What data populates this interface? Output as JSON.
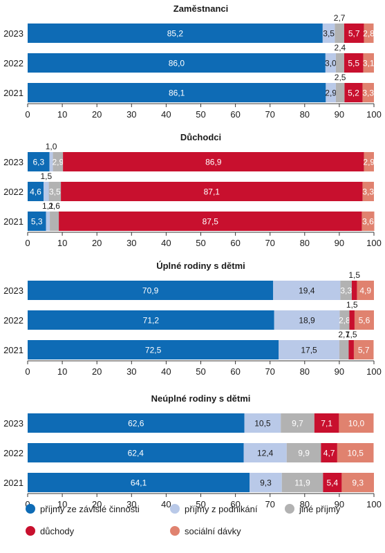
{
  "chart_data": {
    "type": "bar",
    "orientation": "horizontal",
    "stacked": true,
    "xlim": [
      0,
      100
    ],
    "xticks": [
      "0",
      "10",
      "20",
      "30",
      "40",
      "50",
      "60",
      "70",
      "80",
      "90",
      "100"
    ],
    "legend": {
      "placement": "bottom",
      "entries": [
        {
          "name": "příjmy ze závislé činnosti",
          "color": "#0e6bb5"
        },
        {
          "name": "příjmy z podnikání",
          "color": "#b9c9e8"
        },
        {
          "name": "jiné příjmy",
          "color": "#b2b2b2"
        },
        {
          "name": "důchody",
          "color": "#c8102e"
        },
        {
          "name": "sociální dávky",
          "color": "#e0826f"
        }
      ]
    },
    "panels": [
      {
        "title": "Zaměstnanci",
        "rows": [
          {
            "year": "2023",
            "values": [
              85.2,
              3.5,
              2.7,
              5.7,
              2.8
            ],
            "labels": [
              "85,2",
              "3,5",
              "2,7",
              "5,7",
              "2,8"
            ]
          },
          {
            "year": "2022",
            "values": [
              86.0,
              3.0,
              2.4,
              5.5,
              3.1
            ],
            "labels": [
              "86,0",
              "3,0",
              "2,4",
              "5,5",
              "3,1"
            ]
          },
          {
            "year": "2021",
            "values": [
              86.1,
              2.9,
              2.5,
              5.2,
              3.3
            ],
            "labels": [
              "86,1",
              "2,9",
              "2,5",
              "5,2",
              "3,3"
            ]
          }
        ]
      },
      {
        "title": "Důchodci",
        "rows": [
          {
            "year": "2023",
            "values": [
              6.3,
              1.0,
              2.9,
              86.9,
              2.9
            ],
            "labels": [
              "6,3",
              "1,0",
              "2,9",
              "86,9",
              "2,9"
            ]
          },
          {
            "year": "2022",
            "values": [
              4.6,
              1.5,
              3.5,
              87.1,
              3.3
            ],
            "labels": [
              "4,6",
              "1,5",
              "3,5",
              "87,1",
              "3,3"
            ]
          },
          {
            "year": "2021",
            "values": [
              5.3,
              1.1,
              2.6,
              87.5,
              3.6
            ],
            "labels": [
              "5,3",
              "1,1",
              "2,6",
              "87,5",
              "3,6"
            ]
          }
        ]
      },
      {
        "title": "Úplné rodiny s dětmi",
        "rows": [
          {
            "year": "2023",
            "values": [
              70.9,
              19.4,
              3.3,
              1.5,
              4.9
            ],
            "labels": [
              "70,9",
              "19,4",
              "3,3",
              "1,5",
              "4,9"
            ]
          },
          {
            "year": "2022",
            "values": [
              71.2,
              18.9,
              2.8,
              1.5,
              5.6
            ],
            "labels": [
              "71,2",
              "18,9",
              "2,8",
              "1,5",
              "5,6"
            ]
          },
          {
            "year": "2021",
            "values": [
              72.5,
              17.5,
              2.7,
              1.5,
              5.7
            ],
            "labels": [
              "72,5",
              "17,5",
              "2,7",
              "1,5",
              "5,7"
            ]
          }
        ]
      },
      {
        "title": "Neúplné rodiny s dětmi",
        "rows": [
          {
            "year": "2023",
            "values": [
              62.6,
              10.5,
              9.7,
              7.1,
              10.0
            ],
            "labels": [
              "62,6",
              "10,5",
              "9,7",
              "7,1",
              "10,0"
            ]
          },
          {
            "year": "2022",
            "values": [
              62.4,
              12.4,
              9.9,
              4.7,
              10.5
            ],
            "labels": [
              "62,4",
              "12,4",
              "9,9",
              "4,7",
              "10,5"
            ]
          },
          {
            "year": "2021",
            "values": [
              64.1,
              9.3,
              11.9,
              5.4,
              9.3
            ],
            "labels": [
              "64,1",
              "9,3",
              "11,9",
              "5,4",
              "9,3"
            ]
          }
        ]
      }
    ]
  }
}
